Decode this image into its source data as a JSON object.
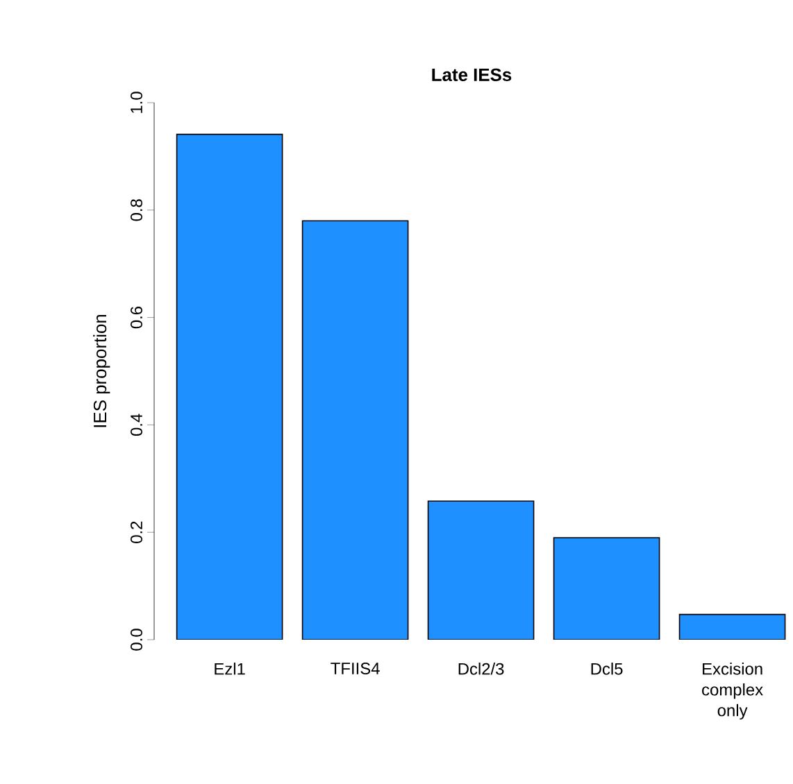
{
  "chart_data": {
    "type": "bar",
    "title": "Late IESs",
    "ylabel": "IES proportion",
    "categories": [
      "Ezl1",
      "TFIIS4",
      "Dcl2/3",
      "Dcl5",
      "Excision complex only"
    ],
    "values": [
      0.941,
      0.78,
      0.258,
      0.19,
      0.047
    ],
    "color": "#1e90ff",
    "ylim": [
      0,
      1
    ],
    "yticks": [
      {
        "value": 0,
        "label": "0.0"
      },
      {
        "value": 0.2,
        "label": "0.2"
      },
      {
        "value": 0.4,
        "label": "0.4"
      },
      {
        "value": 0.6,
        "label": "0.6"
      },
      {
        "value": 0.8,
        "label": "0.8"
      },
      {
        "value": 1,
        "label": "1.0"
      }
    ]
  }
}
